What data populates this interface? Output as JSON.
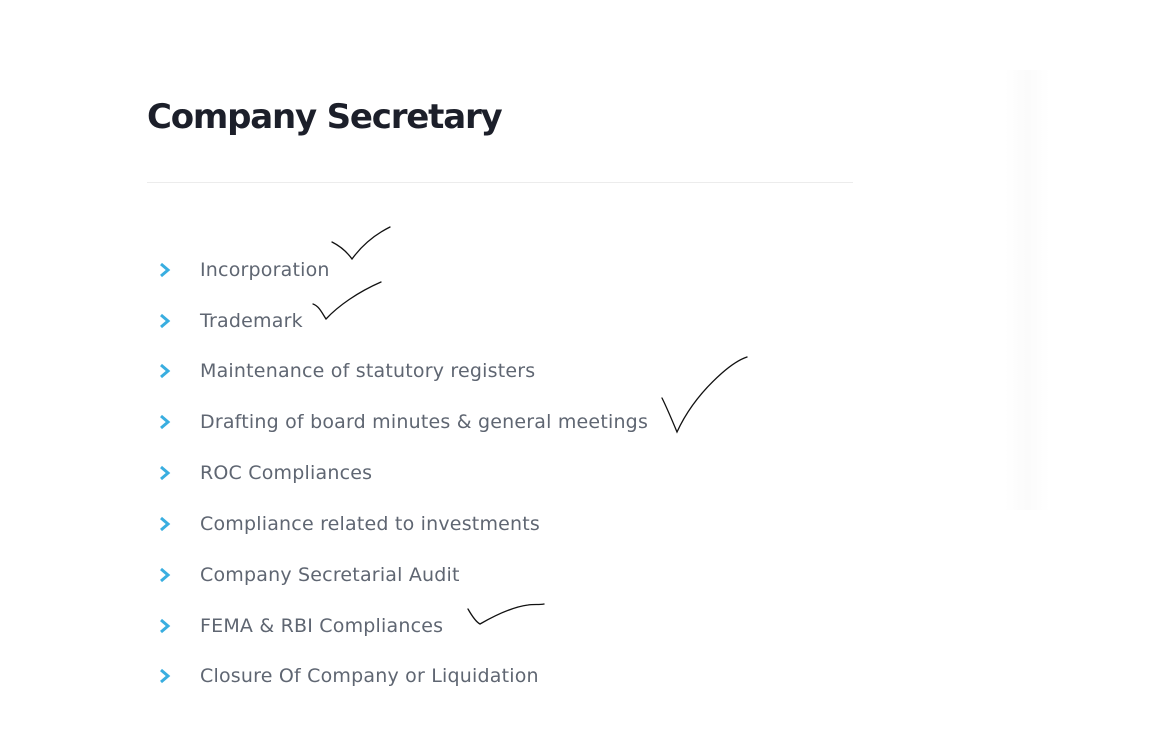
{
  "page": {
    "title": "Company Secretary"
  },
  "services": {
    "items": [
      {
        "label": "Incorporation"
      },
      {
        "label": "Trademark"
      },
      {
        "label": "Maintenance of statutory registers"
      },
      {
        "label": "Drafting of board minutes & general meetings"
      },
      {
        "label": "ROC Compliances"
      },
      {
        "label": "Compliance related to investments"
      },
      {
        "label": "Company Secretarial Audit"
      },
      {
        "label": "FEMA & RBI Compliances"
      },
      {
        "label": "Closure Of Company or Liquidation"
      }
    ]
  },
  "colors": {
    "title": "#1c1f2a",
    "text": "#5f6672",
    "accent": "#39aee0",
    "divider": "#ececec",
    "annotation": "#111111"
  },
  "icons": {
    "bullet": "chevron-right-icon",
    "annotation": "handwritten-checkmark-icon"
  }
}
